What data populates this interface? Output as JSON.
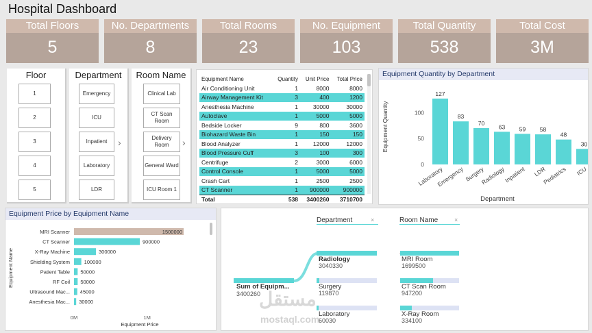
{
  "title": "Hospital Dashboard",
  "kpis": [
    {
      "label": "Total Floors",
      "value": "5"
    },
    {
      "label": "No. Departments",
      "value": "8"
    },
    {
      "label": "Total Rooms",
      "value": "23"
    },
    {
      "label": "No. Equipment",
      "value": "103"
    },
    {
      "label": "Total Quantity",
      "value": "538"
    },
    {
      "label": "Total Cost",
      "value": "3M"
    }
  ],
  "slicers": {
    "floor": {
      "title": "Floor",
      "items": [
        "1",
        "2",
        "3",
        "4",
        "5"
      ]
    },
    "department": {
      "title": "Department",
      "items": [
        "Emergency",
        "ICU",
        "Inpatient",
        "Laboratory",
        "LDR"
      ]
    },
    "room": {
      "title": "Room Name",
      "items": [
        "Clinical Lab",
        "CT Scan Room",
        "Delivery Room",
        "General Ward",
        "ICU Room 1"
      ]
    }
  },
  "equipment_table": {
    "headers": [
      "Equipment Name",
      "Quantity",
      "Unit Price",
      "Total Price"
    ],
    "rows": [
      [
        "Air Conditioning Unit",
        "1",
        "8000",
        "8000"
      ],
      [
        "Airway Management Kit",
        "3",
        "400",
        "1200"
      ],
      [
        "Anesthesia Machine",
        "1",
        "30000",
        "30000"
      ],
      [
        "Autoclave",
        "1",
        "5000",
        "5000"
      ],
      [
        "Bedside Locker",
        "9",
        "800",
        "3600"
      ],
      [
        "Biohazard Waste Bin",
        "1",
        "150",
        "150"
      ],
      [
        "Blood Analyzer",
        "1",
        "12000",
        "12000"
      ],
      [
        "Blood Pressure Cuff",
        "3",
        "100",
        "300"
      ],
      [
        "Centrifuge",
        "2",
        "3000",
        "6000"
      ],
      [
        "Control Console",
        "1",
        "5000",
        "5000"
      ],
      [
        "Crash Cart",
        "1",
        "2500",
        "2500"
      ],
      [
        "CT Scanner",
        "1",
        "900000",
        "900000"
      ]
    ],
    "total": [
      "Total",
      "538",
      "3400260",
      "3710700"
    ]
  },
  "qty_chart_title": "Equipment Quantity by Department",
  "price_chart_title": "Equipment Price by Equipment Name",
  "chart_data": [
    {
      "type": "bar",
      "title": "Equipment Quantity by Department",
      "categories": [
        "Laboratory",
        "Emergency",
        "Surgery",
        "Radiology",
        "Inpatient",
        "LDR",
        "Pediatrics",
        "ICU"
      ],
      "values": [
        127,
        83,
        70,
        63,
        59,
        58,
        48,
        30
      ],
      "xlabel": "Department",
      "ylabel": "Equipment Quantity",
      "yticks": [
        "0",
        "50",
        "100"
      ],
      "ylim": [
        0,
        140
      ],
      "color": "#5ad6d6"
    },
    {
      "type": "bar",
      "orientation": "horizontal",
      "title": "Equipment Price by Equipment Name",
      "categories": [
        "MRI Scanner",
        "CT Scanner",
        "X-Ray Machine",
        "Shielding System",
        "Patient Table",
        "RF Coil",
        "Ultrasound Mac...",
        "Anesthesia Mac..."
      ],
      "values": [
        1500000,
        900000,
        300000,
        100000,
        50000,
        50000,
        45000,
        30000
      ],
      "labels": [
        "1500000",
        "900000",
        "300000",
        "100000",
        "50000",
        "50000",
        "45000",
        "30000"
      ],
      "xlabel": "Equipment Price",
      "ylabel": "Equipment Name",
      "xticks": [
        "0M",
        "1M"
      ],
      "xlim": [
        0,
        1500000
      ],
      "colors": [
        "#cfb9ac",
        "#5ad6d6"
      ]
    }
  ],
  "tree": {
    "headers": [
      "Department",
      "Room Name"
    ],
    "root": {
      "label": "Sum of Equipm...",
      "value": "3400260"
    },
    "departments": [
      {
        "label": "Radiology",
        "value": "3040330",
        "fill": 1.0
      },
      {
        "label": "Surgery",
        "value": "119870",
        "fill": 0.04
      },
      {
        "label": "Laboratory",
        "value": "60030",
        "fill": 0.02
      }
    ],
    "rooms": [
      {
        "label": "MRI Room",
        "value": "1699500",
        "fill": 1.0
      },
      {
        "label": "CT Scan Room",
        "value": "947200",
        "fill": 0.56
      },
      {
        "label": "X-Ray Room",
        "value": "334100",
        "fill": 0.2
      }
    ]
  },
  "watermark": {
    "arabic": "مستقل",
    "latin": "mostaql.com"
  },
  "colors": {
    "teal": "#5ad6d6",
    "tan": "#cfb9ac",
    "kpi": "#b5a49a"
  }
}
